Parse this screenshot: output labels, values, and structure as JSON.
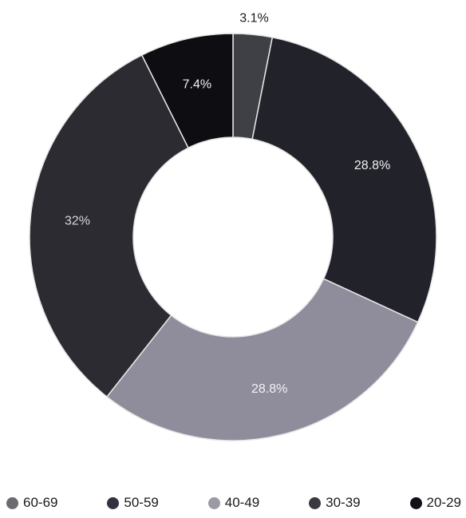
{
  "chart_data": {
    "type": "pie",
    "donut": true,
    "title": "",
    "slices": [
      {
        "label": "60-69",
        "value": 3.1,
        "display": "3.1%",
        "color": "#3f3f46",
        "label_color": "#1a1a1a",
        "label_outside": true
      },
      {
        "label": "50-59",
        "value": 28.8,
        "display": "28.8%",
        "color": "#22222a",
        "label_color": "#f2f2f2",
        "label_outside": false
      },
      {
        "label": "40-49",
        "value": 28.8,
        "display": "28.8%",
        "color": "#8f8d9c",
        "label_color": "#f2f2f2",
        "label_outside": false
      },
      {
        "label": "30-39",
        "value": 32,
        "display": "32%",
        "color": "#2b2b31",
        "label_color": "#d8d8d8",
        "label_outside": false
      },
      {
        "label": "20-29",
        "value": 7.4,
        "display": "7.4%",
        "color": "#0d0d12",
        "label_color": "#f2f2f2",
        "label_outside": false
      }
    ],
    "legend": {
      "position": "bottom",
      "items": [
        {
          "label": "60-69",
          "color": "#6b6b72"
        },
        {
          "label": "50-59",
          "color": "#32323e"
        },
        {
          "label": "40-49",
          "color": "#9d9aa6"
        },
        {
          "label": "30-39",
          "color": "#3a3a40"
        },
        {
          "label": "20-29",
          "color": "#111118"
        }
      ]
    }
  }
}
